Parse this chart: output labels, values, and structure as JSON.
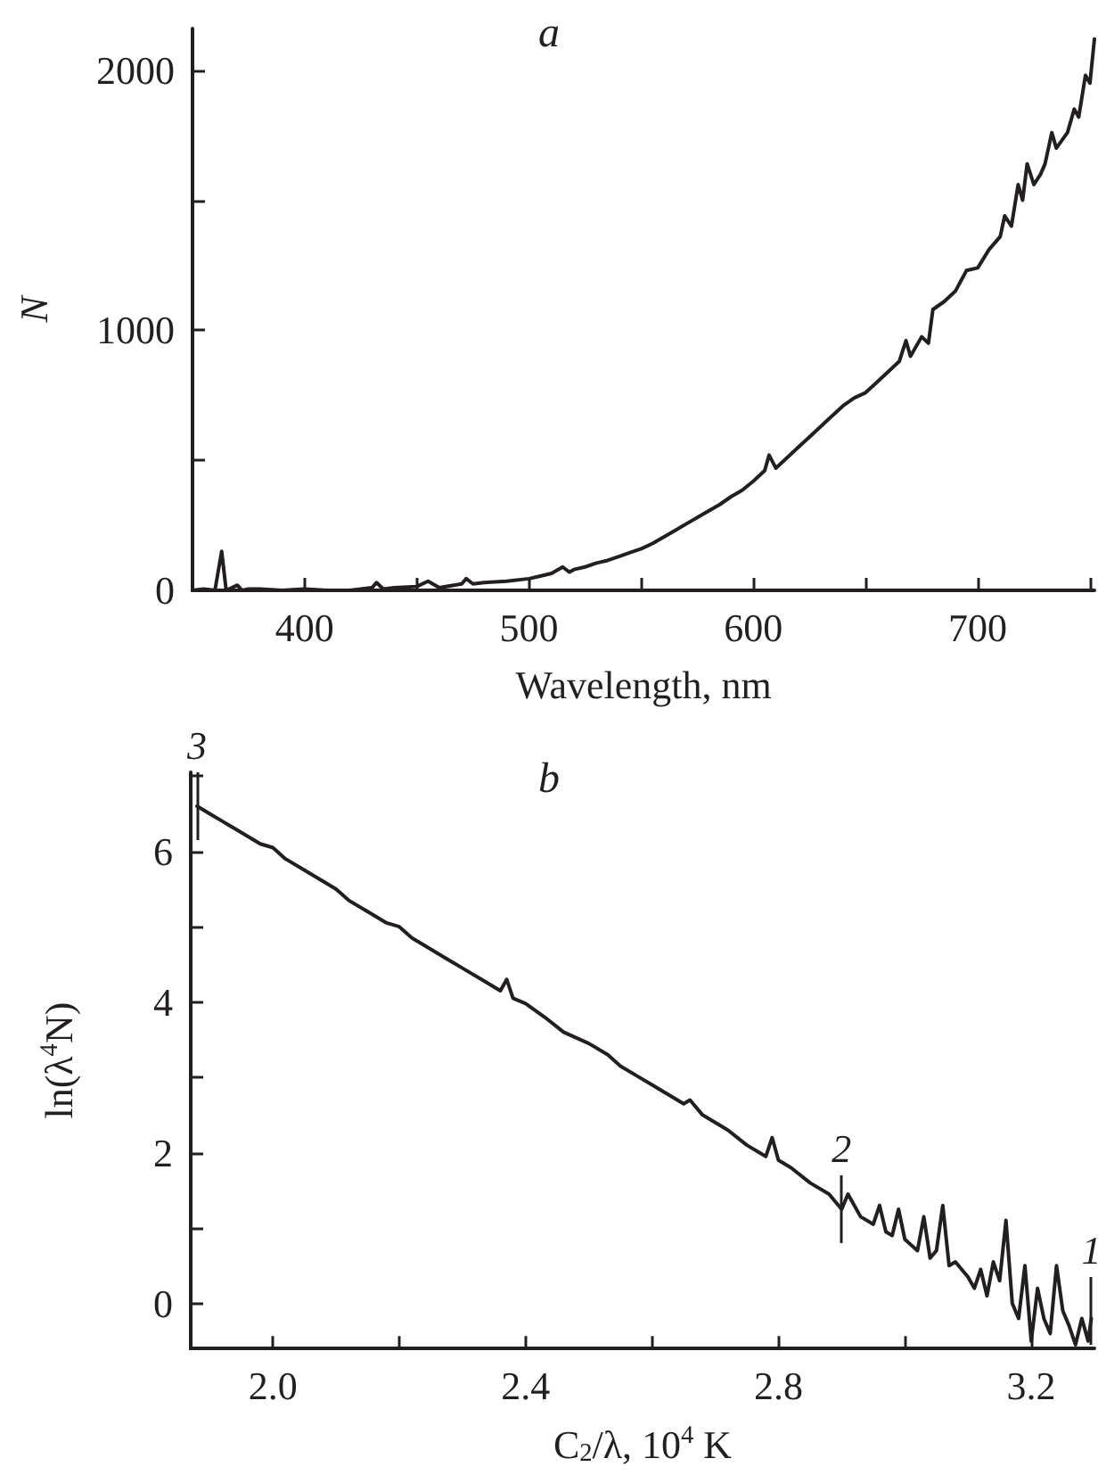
{
  "chart_data": [
    {
      "type": "line",
      "title": "a",
      "xlabel": "Wavelength, nm",
      "ylabel": "N",
      "xlim": [
        350,
        752
      ],
      "ylim": [
        0,
        2160
      ],
      "xticks": [
        400,
        {
          "value": 450,
          "label": null
        },
        500,
        {
          "value": 550,
          "label": null
        },
        600,
        {
          "value": 650,
          "label": null
        },
        700,
        {
          "value": 750,
          "label": null
        }
      ],
      "yticks": [
        0,
        {
          "value": 500,
          "label": null
        },
        1000,
        {
          "value": 1500,
          "label": null
        },
        2000
      ],
      "grid": false,
      "marker": "none",
      "line_style": "solid",
      "series": [
        {
          "color": "#231f20",
          "x": [
            350,
            355,
            360,
            363,
            365,
            370,
            372,
            375,
            380,
            390,
            400,
            410,
            420,
            430,
            432,
            435,
            440,
            450,
            455,
            460,
            470,
            472,
            475,
            480,
            490,
            500,
            505,
            510,
            515,
            518,
            520,
            525,
            530,
            535,
            540,
            545,
            550,
            555,
            560,
            565,
            570,
            575,
            580,
            585,
            590,
            595,
            600,
            605,
            607,
            610,
            615,
            620,
            625,
            630,
            635,
            640,
            645,
            650,
            655,
            660,
            665,
            668,
            670,
            675,
            678,
            680,
            685,
            690,
            695,
            700,
            705,
            710,
            712,
            715,
            718,
            720,
            722,
            725,
            728,
            730,
            733,
            735,
            740,
            743,
            745,
            748,
            750,
            752
          ],
          "values": [
            0,
            5,
            0,
            150,
            0,
            20,
            0,
            5,
            5,
            0,
            5,
            0,
            0,
            10,
            30,
            5,
            10,
            15,
            35,
            10,
            25,
            45,
            25,
            30,
            35,
            45,
            55,
            65,
            90,
            70,
            80,
            90,
            105,
            115,
            130,
            145,
            160,
            180,
            205,
            230,
            255,
            280,
            305,
            330,
            360,
            385,
            420,
            460,
            520,
            470,
            510,
            550,
            590,
            630,
            670,
            710,
            740,
            760,
            800,
            840,
            880,
            960,
            900,
            975,
            950,
            1080,
            1110,
            1150,
            1230,
            1240,
            1310,
            1360,
            1440,
            1400,
            1560,
            1500,
            1640,
            1560,
            1600,
            1640,
            1760,
            1700,
            1760,
            1850,
            1820,
            1980,
            1950,
            2120
          ]
        }
      ]
    },
    {
      "type": "line",
      "title": "b",
      "xlabel": "C$_{2}$/λ, 10$^{4}$ K",
      "ylabel": "ln(λ$^{4}$N)",
      "xlim": [
        1.87,
        3.3
      ],
      "ylim": [
        -0.6,
        7.05
      ],
      "xticks": [
        {
          "value": 2.0,
          "label": "2.0"
        },
        {
          "value": 2.2,
          "label": null
        },
        {
          "value": 2.4,
          "label": "2.4"
        },
        {
          "value": 2.6,
          "label": null
        },
        {
          "value": 2.8,
          "label": "2.8"
        },
        {
          "value": 3.0,
          "label": null
        },
        {
          "value": 3.2,
          "label": "3.2"
        }
      ],
      "yticks": [
        0,
        {
          "value": 1,
          "label": null
        },
        2,
        {
          "value": 3,
          "label": null
        },
        4,
        {
          "value": 5,
          "label": null
        },
        6,
        {
          "value": 7,
          "label": null
        }
      ],
      "grid": false,
      "marker": "none",
      "line_style": "solid",
      "annotations": [
        {
          "text": "3",
          "x": 1.88,
          "y": 6.6
        },
        {
          "text": "2",
          "x": 2.9,
          "y": 1.25
        },
        {
          "text": "1",
          "x": 3.295,
          "y": -0.1
        }
      ],
      "series": [
        {
          "color": "#231f20",
          "x": [
            1.88,
            1.9,
            1.92,
            1.95,
            1.98,
            2.0,
            2.02,
            2.05,
            2.08,
            2.1,
            2.12,
            2.15,
            2.18,
            2.2,
            2.22,
            2.25,
            2.28,
            2.3,
            2.33,
            2.36,
            2.37,
            2.38,
            2.4,
            2.43,
            2.46,
            2.5,
            2.53,
            2.55,
            2.58,
            2.6,
            2.62,
            2.65,
            2.66,
            2.68,
            2.7,
            2.72,
            2.75,
            2.78,
            2.79,
            2.8,
            2.82,
            2.85,
            2.88,
            2.9,
            2.91,
            2.93,
            2.95,
            2.96,
            2.97,
            2.98,
            2.99,
            3.0,
            3.02,
            3.03,
            3.04,
            3.05,
            3.06,
            3.07,
            3.08,
            3.1,
            3.11,
            3.12,
            3.13,
            3.14,
            3.15,
            3.16,
            3.17,
            3.18,
            3.19,
            3.2,
            3.21,
            3.22,
            3.23,
            3.24,
            3.25,
            3.26,
            3.27,
            3.28,
            3.29,
            3.295
          ],
          "values": [
            6.6,
            6.5,
            6.4,
            6.25,
            6.1,
            6.05,
            5.9,
            5.75,
            5.6,
            5.5,
            5.35,
            5.2,
            5.05,
            5.0,
            4.85,
            4.7,
            4.55,
            4.45,
            4.3,
            4.15,
            4.3,
            4.05,
            3.98,
            3.8,
            3.6,
            3.45,
            3.3,
            3.15,
            3.0,
            2.9,
            2.8,
            2.65,
            2.7,
            2.5,
            2.4,
            2.3,
            2.1,
            1.95,
            2.2,
            1.9,
            1.8,
            1.6,
            1.45,
            1.25,
            1.45,
            1.15,
            1.05,
            1.3,
            0.95,
            0.9,
            1.25,
            0.85,
            0.7,
            1.15,
            0.6,
            0.7,
            1.3,
            0.5,
            0.55,
            0.35,
            0.2,
            0.45,
            0.1,
            0.55,
            0.3,
            1.1,
            0.0,
            -0.2,
            0.5,
            -0.5,
            0.2,
            -0.2,
            -0.4,
            0.5,
            -0.1,
            -0.3,
            -0.55,
            -0.2,
            -0.5,
            -0.2
          ]
        }
      ]
    }
  ]
}
